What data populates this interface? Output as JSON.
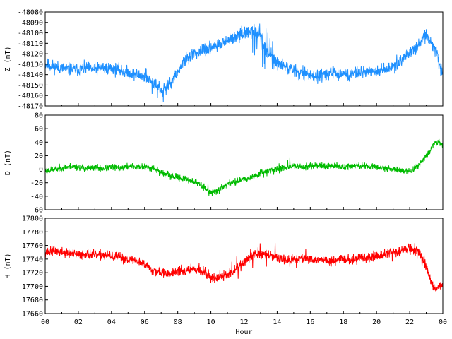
{
  "chart_data": [
    {
      "type": "line",
      "ylabel": "Z (nT)",
      "ylim": [
        -48170,
        -48080
      ],
      "yticks": [
        -48080,
        -48090,
        -48100,
        -48110,
        -48120,
        -48130,
        -48140,
        -48150,
        -48160,
        -48170
      ],
      "xlim": [
        0,
        24
      ],
      "color": "#1E90FF",
      "noise": 6,
      "seed": 11,
      "spikes": [
        [
          12.5,
          13.8,
          0.35,
          20
        ],
        [
          6.0,
          8.0,
          0.08,
          12
        ],
        [
          16.5,
          17.5,
          0.05,
          12
        ]
      ],
      "series": [
        {
          "x": [
            0,
            0.5,
            1,
            1.5,
            2,
            2.5,
            3,
            3.5,
            4,
            4.5,
            5,
            5.5,
            6,
            6.5,
            7,
            7.5,
            8,
            8.5,
            9,
            9.5,
            10,
            10.5,
            11,
            11.5,
            12,
            12.5,
            13,
            13.5,
            14,
            14.5,
            15,
            15.5,
            16,
            16.5,
            17,
            17.5,
            18,
            18.5,
            19,
            19.5,
            20,
            20.5,
            21,
            21.5,
            22,
            22.5,
            23,
            23.3,
            23.6,
            24
          ],
          "values": [
            -48130,
            -48132,
            -48134,
            -48135,
            -48135,
            -48134,
            -48135,
            -48133,
            -48134,
            -48136,
            -48138,
            -48140,
            -48142,
            -48147,
            -48155,
            -48150,
            -48138,
            -48125,
            -48120,
            -48118,
            -48114,
            -48112,
            -48108,
            -48104,
            -48100,
            -48098,
            -48104,
            -48120,
            -48128,
            -48132,
            -48135,
            -48139,
            -48140,
            -48142,
            -48140,
            -48138,
            -48139,
            -48140,
            -48137,
            -48136,
            -48138,
            -48135,
            -48132,
            -48126,
            -48118,
            -48112,
            -48103,
            -48108,
            -48120,
            -48140
          ]
        }
      ]
    },
    {
      "type": "line",
      "ylabel": "D (nT)",
      "ylim": [
        -60,
        80
      ],
      "yticks": [
        80,
        60,
        40,
        20,
        0,
        -20,
        -40,
        -60
      ],
      "xlim": [
        0,
        24
      ],
      "color": "#00BB00",
      "noise": 5,
      "seed": 23,
      "spikes": [
        [
          9.5,
          10.5,
          0.06,
          10
        ],
        [
          13.0,
          16.5,
          0.05,
          14
        ]
      ],
      "series": [
        {
          "x": [
            0,
            0.5,
            1,
            1.5,
            2,
            2.5,
            3,
            3.5,
            4,
            4.5,
            5,
            5.5,
            6,
            6.5,
            7,
            7.5,
            8,
            8.5,
            9,
            9.5,
            10,
            10.5,
            11,
            11.5,
            12,
            12.5,
            13,
            13.5,
            14,
            14.5,
            15,
            15.5,
            16,
            16.5,
            17,
            17.5,
            18,
            18.5,
            19,
            19.5,
            20,
            20.5,
            21,
            21.5,
            22,
            22.5,
            23,
            23.3,
            23.6,
            24
          ],
          "values": [
            -2,
            -1,
            2,
            4,
            3,
            1,
            2,
            1,
            3,
            2,
            4,
            4,
            3,
            2,
            -5,
            -10,
            -12,
            -15,
            -18,
            -25,
            -35,
            -30,
            -22,
            -18,
            -14,
            -12,
            -5,
            -2,
            0,
            2,
            4,
            3,
            5,
            6,
            4,
            5,
            3,
            4,
            5,
            4,
            3,
            2,
            0,
            -2,
            -4,
            5,
            20,
            32,
            42,
            35
          ]
        }
      ]
    },
    {
      "type": "line",
      "ylabel": "H (nT)",
      "ylim": [
        17660,
        17800
      ],
      "yticks": [
        17800,
        17780,
        17760,
        17740,
        17720,
        17700,
        17680,
        17660
      ],
      "xlim": [
        0,
        24
      ],
      "xticks": [
        "00",
        "02",
        "04",
        "06",
        "08",
        "10",
        "12",
        "14",
        "16",
        "18",
        "20",
        "22",
        "00"
      ],
      "xlabel": "Hour",
      "color": "#FF0000",
      "noise": 7,
      "seed": 37,
      "spikes": [
        [
          6.0,
          16.0,
          0.06,
          14
        ],
        [
          20.0,
          23.0,
          0.04,
          12
        ]
      ],
      "series": [
        {
          "x": [
            0,
            0.5,
            1,
            1.5,
            2,
            2.5,
            3,
            3.5,
            4,
            4.5,
            5,
            5.5,
            6,
            6.5,
            7,
            7.5,
            8,
            8.5,
            9,
            9.5,
            10,
            10.5,
            11,
            11.5,
            12,
            12.5,
            13,
            13.5,
            14,
            14.5,
            15,
            15.5,
            16,
            16.5,
            17,
            17.5,
            18,
            18.5,
            19,
            19.5,
            20,
            20.5,
            21,
            21.5,
            22,
            22.5,
            23,
            23.3,
            23.6,
            24
          ],
          "values": [
            17750,
            17752,
            17750,
            17748,
            17746,
            17748,
            17745,
            17746,
            17744,
            17742,
            17740,
            17738,
            17732,
            17725,
            17720,
            17718,
            17722,
            17724,
            17726,
            17722,
            17714,
            17712,
            17718,
            17725,
            17736,
            17745,
            17748,
            17746,
            17742,
            17738,
            17740,
            17742,
            17740,
            17738,
            17736,
            17738,
            17740,
            17739,
            17741,
            17742,
            17744,
            17747,
            17750,
            17752,
            17755,
            17752,
            17730,
            17705,
            17695,
            17705
          ]
        }
      ]
    }
  ]
}
